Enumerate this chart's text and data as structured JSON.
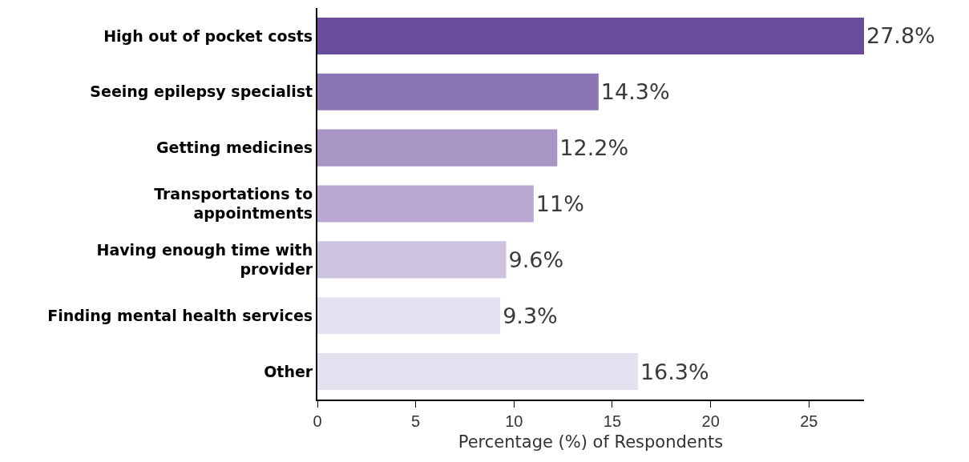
{
  "chart_data": {
    "type": "bar",
    "orientation": "horizontal",
    "xlabel": "Percentage (%) of Respondents",
    "categories": [
      "High out of pocket costs",
      "Seeing epilepsy specialist",
      "Getting medicines",
      "Transportations to appointments",
      "Having enough time with provider",
      "Finding mental health services",
      "Other"
    ],
    "values": [
      27.8,
      14.3,
      12.2,
      11,
      9.6,
      9.3,
      16.3
    ],
    "value_labels": [
      "27.8%",
      "14.3%",
      "12.2%",
      "11%",
      "9.6%",
      "9.3%",
      "16.3%"
    ],
    "colors": [
      "#6a4c9c",
      "#8a76b3",
      "#a895c6",
      "#b9a9d2",
      "#cdc3df",
      "#e5e0ef",
      "#e5e0ef"
    ],
    "xlim": [
      0,
      27.8
    ],
    "xticks": [
      0,
      5,
      10,
      15,
      20,
      25
    ]
  }
}
